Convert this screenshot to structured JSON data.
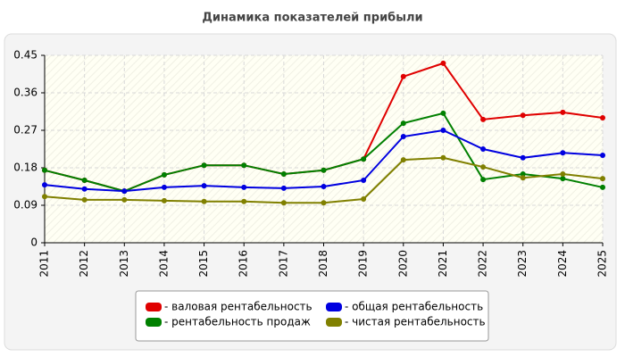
{
  "chart_data": {
    "type": "line",
    "title": "Динамика показателей прибыли",
    "categories": [
      "2011",
      "2012",
      "2013",
      "2014",
      "2015",
      "2016",
      "2017",
      "2018",
      "2019",
      "2020",
      "2021",
      "2022",
      "2023",
      "2024",
      "2025"
    ],
    "series": [
      {
        "name": "- валовая рентабельность",
        "color": "#e00000",
        "values": [
          0.174,
          0.15,
          0.124,
          0.163,
          0.186,
          0.186,
          0.165,
          0.174,
          0.201,
          0.399,
          0.431,
          0.296,
          0.306,
          0.313,
          0.3
        ]
      },
      {
        "name": "- рентабельность продаж",
        "color": "#008000",
        "values": [
          0.174,
          0.15,
          0.124,
          0.163,
          0.186,
          0.186,
          0.165,
          0.174,
          0.201,
          0.287,
          0.311,
          0.152,
          0.165,
          0.154,
          0.133
        ]
      },
      {
        "name": "- общая рентабельность",
        "color": "#0000e0",
        "values": [
          0.139,
          0.129,
          0.124,
          0.133,
          0.137,
          0.133,
          0.131,
          0.135,
          0.15,
          0.255,
          0.27,
          0.225,
          0.204,
          0.216,
          0.21
        ]
      },
      {
        "name": "- чистая рентабельность",
        "color": "#808000",
        "values": [
          0.111,
          0.103,
          0.103,
          0.101,
          0.099,
          0.099,
          0.096,
          0.096,
          0.105,
          0.199,
          0.204,
          0.182,
          0.156,
          0.165,
          0.154
        ]
      }
    ],
    "ylim": [
      0,
      0.45
    ],
    "yticks": [
      0,
      0.09,
      0.18,
      0.27,
      0.36,
      0.45
    ],
    "grid": true
  }
}
